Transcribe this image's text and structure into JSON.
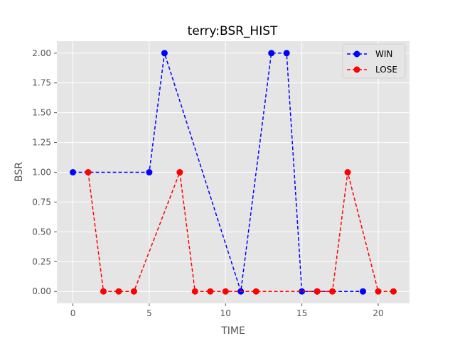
{
  "chart_data": {
    "type": "line",
    "title": "terry:BSR_HIST",
    "xlabel": "TIME",
    "ylabel": "BSR",
    "xlim": [
      -1.05,
      22.05
    ],
    "ylim": [
      -0.1,
      2.1
    ],
    "xticks": [
      0,
      5,
      10,
      15,
      20
    ],
    "yticks": [
      0.0,
      0.25,
      0.5,
      0.75,
      1.0,
      1.25,
      1.5,
      1.75,
      2.0
    ],
    "ytick_labels": [
      "0.00",
      "0.25",
      "0.50",
      "0.75",
      "1.00",
      "1.25",
      "1.50",
      "1.75",
      "2.00"
    ],
    "grid": true,
    "legend_position": "top-right",
    "series": [
      {
        "name": "WIN",
        "color": "#0000ff",
        "line_style": "dashed",
        "marker": "circle",
        "x": [
          0,
          5,
          6,
          11,
          13,
          14,
          15,
          16,
          19
        ],
        "y": [
          1,
          1,
          2,
          0,
          2,
          2,
          0,
          0,
          0
        ]
      },
      {
        "name": "LOSE",
        "color": "#ff0000",
        "line_style": "dashed",
        "marker": "circle",
        "x": [
          1,
          2,
          3,
          4,
          7,
          8,
          9,
          10,
          12,
          16,
          17,
          18,
          20,
          21
        ],
        "y": [
          1,
          0,
          0,
          0,
          1,
          0,
          0,
          0,
          0,
          0,
          0,
          1,
          0,
          0
        ]
      }
    ]
  }
}
